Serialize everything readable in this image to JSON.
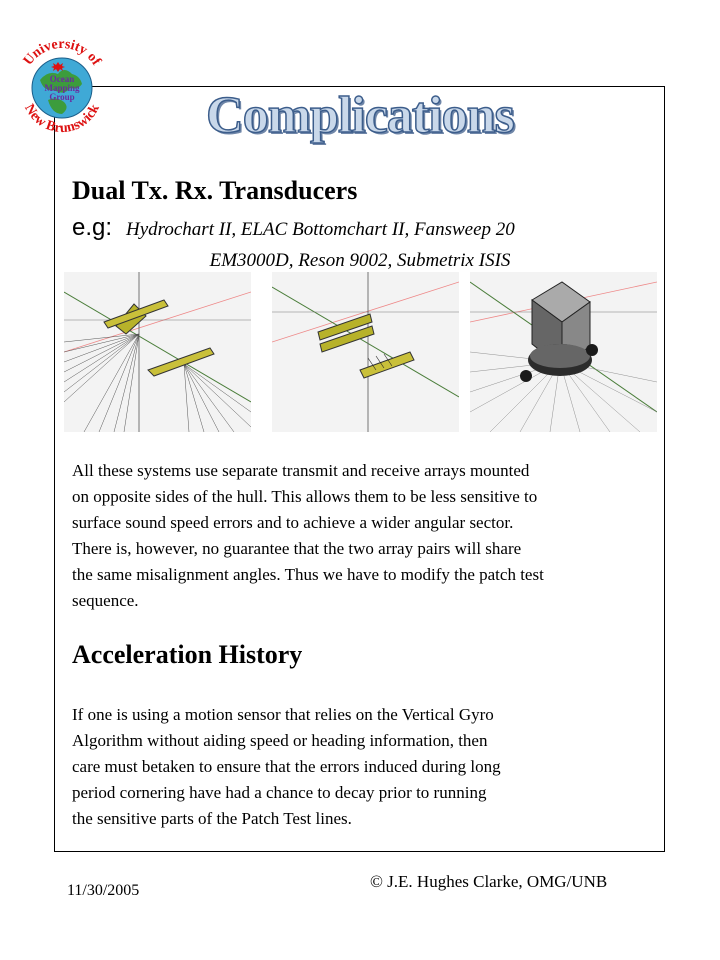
{
  "slide": {
    "title": "Complications",
    "logo": {
      "outer_text_top": "University of",
      "outer_text_bottom": "New Brunswick",
      "inner_text": [
        "Ocean",
        "Mapping",
        "Group"
      ]
    },
    "section1": {
      "heading": "Dual Tx. Rx. Transducers",
      "eg_label": "e.g:",
      "eg_line1": "Hydrochart II,  ELAC Bottomchart II, Fansweep 20",
      "eg_line2": "EM3000D, Reson 9002, Submetrix ISIS",
      "body_lines": [
        "All these systems use separate transmit and receive arrays mounted",
        "on opposite sides of the hull. This allows them to be less sensitive to",
        "surface sound speed errors and to achieve a wider angular sector.",
        "There is, however,  no guarantee that the two array pairs will share",
        "the same misalignment angles. Thus we have to modify the patch test",
        "sequence."
      ]
    },
    "section2": {
      "heading": "Acceleration History",
      "body_lines": [
        "If one is using a motion sensor that relies on the Vertical Gyro",
        "Algorithm without aiding speed or heading information, then",
        "care must betaken to ensure that the errors induced during long",
        "period cornering have had a chance to decay prior to running",
        "the sensitive parts of the Patch Test lines."
      ]
    },
    "footer": {
      "date": "11/30/2005",
      "copyright": "© J.E. Hughes Clarke, OMG/UNB"
    }
  }
}
